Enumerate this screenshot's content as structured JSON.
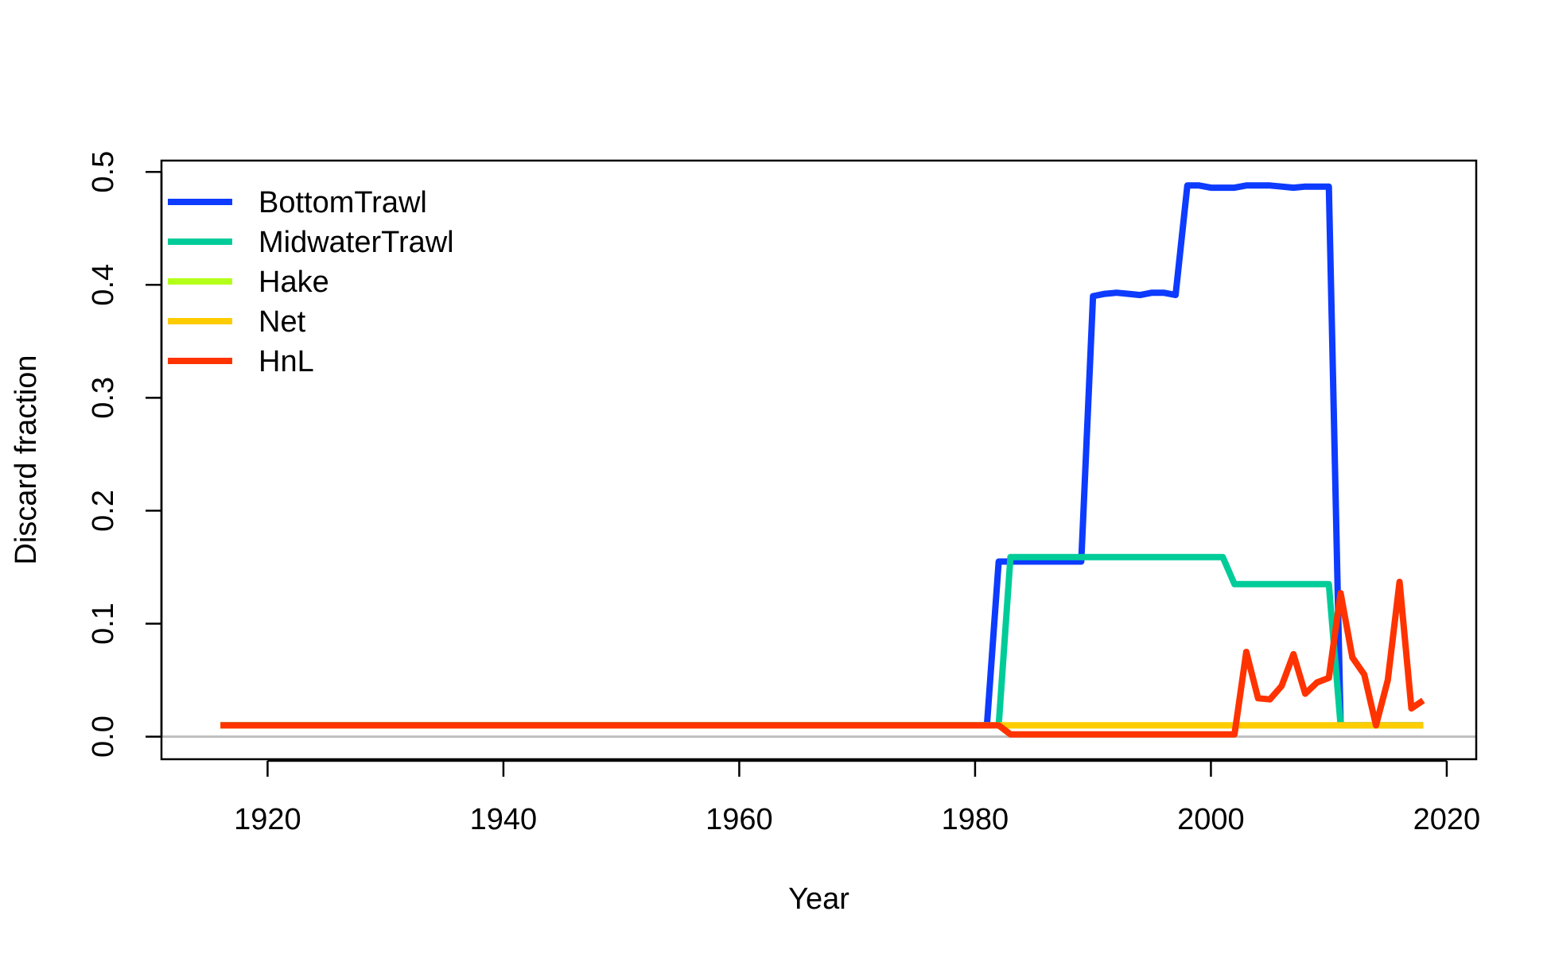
{
  "chart_data": {
    "type": "line",
    "title": "",
    "xlabel": "Year",
    "ylabel": "Discard fraction",
    "xlim": [
      1911,
      2022.5
    ],
    "ylim": [
      -0.02,
      0.51
    ],
    "x_ticks": [
      1920,
      1940,
      1960,
      1980,
      2000,
      2020
    ],
    "y_ticks": [
      0.0,
      0.1,
      0.2,
      0.3,
      0.4,
      0.5
    ],
    "x_tick_labels": [
      "1920",
      "1940",
      "1960",
      "1980",
      "2000",
      "2020"
    ],
    "y_tick_labels": [
      "0.0",
      "0.1",
      "0.2",
      "0.3",
      "0.4",
      "0.5"
    ],
    "reference_line": {
      "y": 0,
      "color": "#bebebe"
    },
    "legend_position": "top-left",
    "grid": false,
    "series": [
      {
        "name": "BottomTrawl",
        "color": "#0d3bff",
        "x": [
          1916,
          1981,
          1982,
          1983,
          1989,
          1990,
          1991,
          1992,
          1993,
          1994,
          1995,
          1996,
          1997,
          1998,
          1999,
          2000,
          2001,
          2002,
          2003,
          2004,
          2005,
          2006,
          2007,
          2008,
          2009,
          2010,
          2011,
          2012,
          2013,
          2014,
          2015,
          2016,
          2017,
          2018
        ],
        "y": [
          0.01,
          0.01,
          0.155,
          0.155,
          0.155,
          0.39,
          0.392,
          0.393,
          0.392,
          0.391,
          0.393,
          0.393,
          0.391,
          0.488,
          0.488,
          0.486,
          0.486,
          0.486,
          0.488,
          0.488,
          0.488,
          0.487,
          0.486,
          0.487,
          0.487,
          0.487,
          0.01,
          0.01,
          0.01,
          0.01,
          0.01,
          0.01,
          0.01,
          0.01
        ]
      },
      {
        "name": "MidwaterTrawl",
        "color": "#00cc99",
        "x": [
          1916,
          1982,
          1983,
          2001,
          2002,
          2010,
          2011,
          2018
        ],
        "y": [
          0.01,
          0.01,
          0.159,
          0.159,
          0.135,
          0.135,
          0.01,
          0.01
        ]
      },
      {
        "name": "Hake",
        "color": "#b3ff1a",
        "x": [
          1916,
          2018
        ],
        "y": [
          0.01,
          0.01
        ]
      },
      {
        "name": "Net",
        "color": "#ffcc00",
        "x": [
          1916,
          2018
        ],
        "y": [
          0.01,
          0.01
        ]
      },
      {
        "name": "HnL",
        "color": "#ff3300",
        "x": [
          1916,
          1982,
          1983,
          2002,
          2003,
          2004,
          2005,
          2006,
          2007,
          2008,
          2009,
          2010,
          2011,
          2012,
          2013,
          2014,
          2015,
          2016,
          2017,
          2018
        ],
        "y": [
          0.01,
          0.01,
          0.002,
          0.002,
          0.075,
          0.034,
          0.033,
          0.045,
          0.073,
          0.038,
          0.048,
          0.052,
          0.127,
          0.07,
          0.055,
          0.01,
          0.05,
          0.137,
          0.025,
          0.032
        ]
      }
    ]
  }
}
